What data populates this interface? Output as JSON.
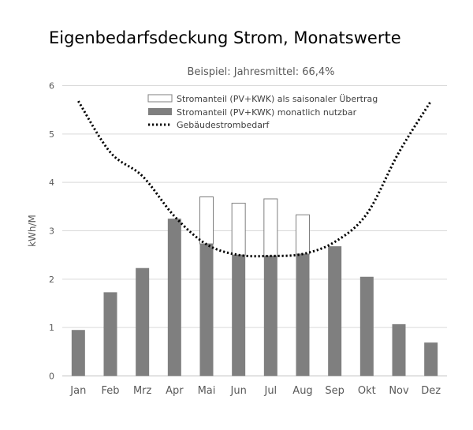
{
  "chart_data": {
    "type": "bar",
    "title": "Eigenbedarfsdeckung Strom, Monatswerte",
    "subtitle": "Beispiel: Jahresmittel: 66,4%",
    "ylabel": "kWh/M",
    "xlabel": "",
    "ylim": [
      0,
      6
    ],
    "yticks": [
      0,
      1,
      2,
      3,
      4,
      5,
      6
    ],
    "grid": true,
    "legend_position": "top-center",
    "categories": [
      "Jan",
      "Feb",
      "Mrz",
      "Apr",
      "Mai",
      "Jun",
      "Jul",
      "Aug",
      "Sep",
      "Okt",
      "Nov",
      "Dez"
    ],
    "series": [
      {
        "name": "Stromanteil (PV+KWK) als saisonaler Übertrag",
        "type": "bar-stacked",
        "color": "#ffffff",
        "values": [
          0,
          0,
          0,
          0,
          0.97,
          1.07,
          1.18,
          0.81,
          0,
          0,
          0,
          0
        ]
      },
      {
        "name": "Stromanteil (PV+KWK) monatlich nutzbar",
        "type": "bar",
        "color": "#7f7f7f",
        "values": [
          0.95,
          1.73,
          2.23,
          3.25,
          2.73,
          2.5,
          2.48,
          2.52,
          2.68,
          2.05,
          1.07,
          0.69
        ]
      },
      {
        "name": "Gebäudestrombedarf",
        "type": "line",
        "style": "dotted",
        "color": "#000000",
        "values": [
          5.68,
          4.62,
          4.13,
          3.3,
          2.72,
          2.5,
          2.48,
          2.52,
          2.77,
          3.35,
          4.62,
          5.68
        ]
      }
    ]
  }
}
